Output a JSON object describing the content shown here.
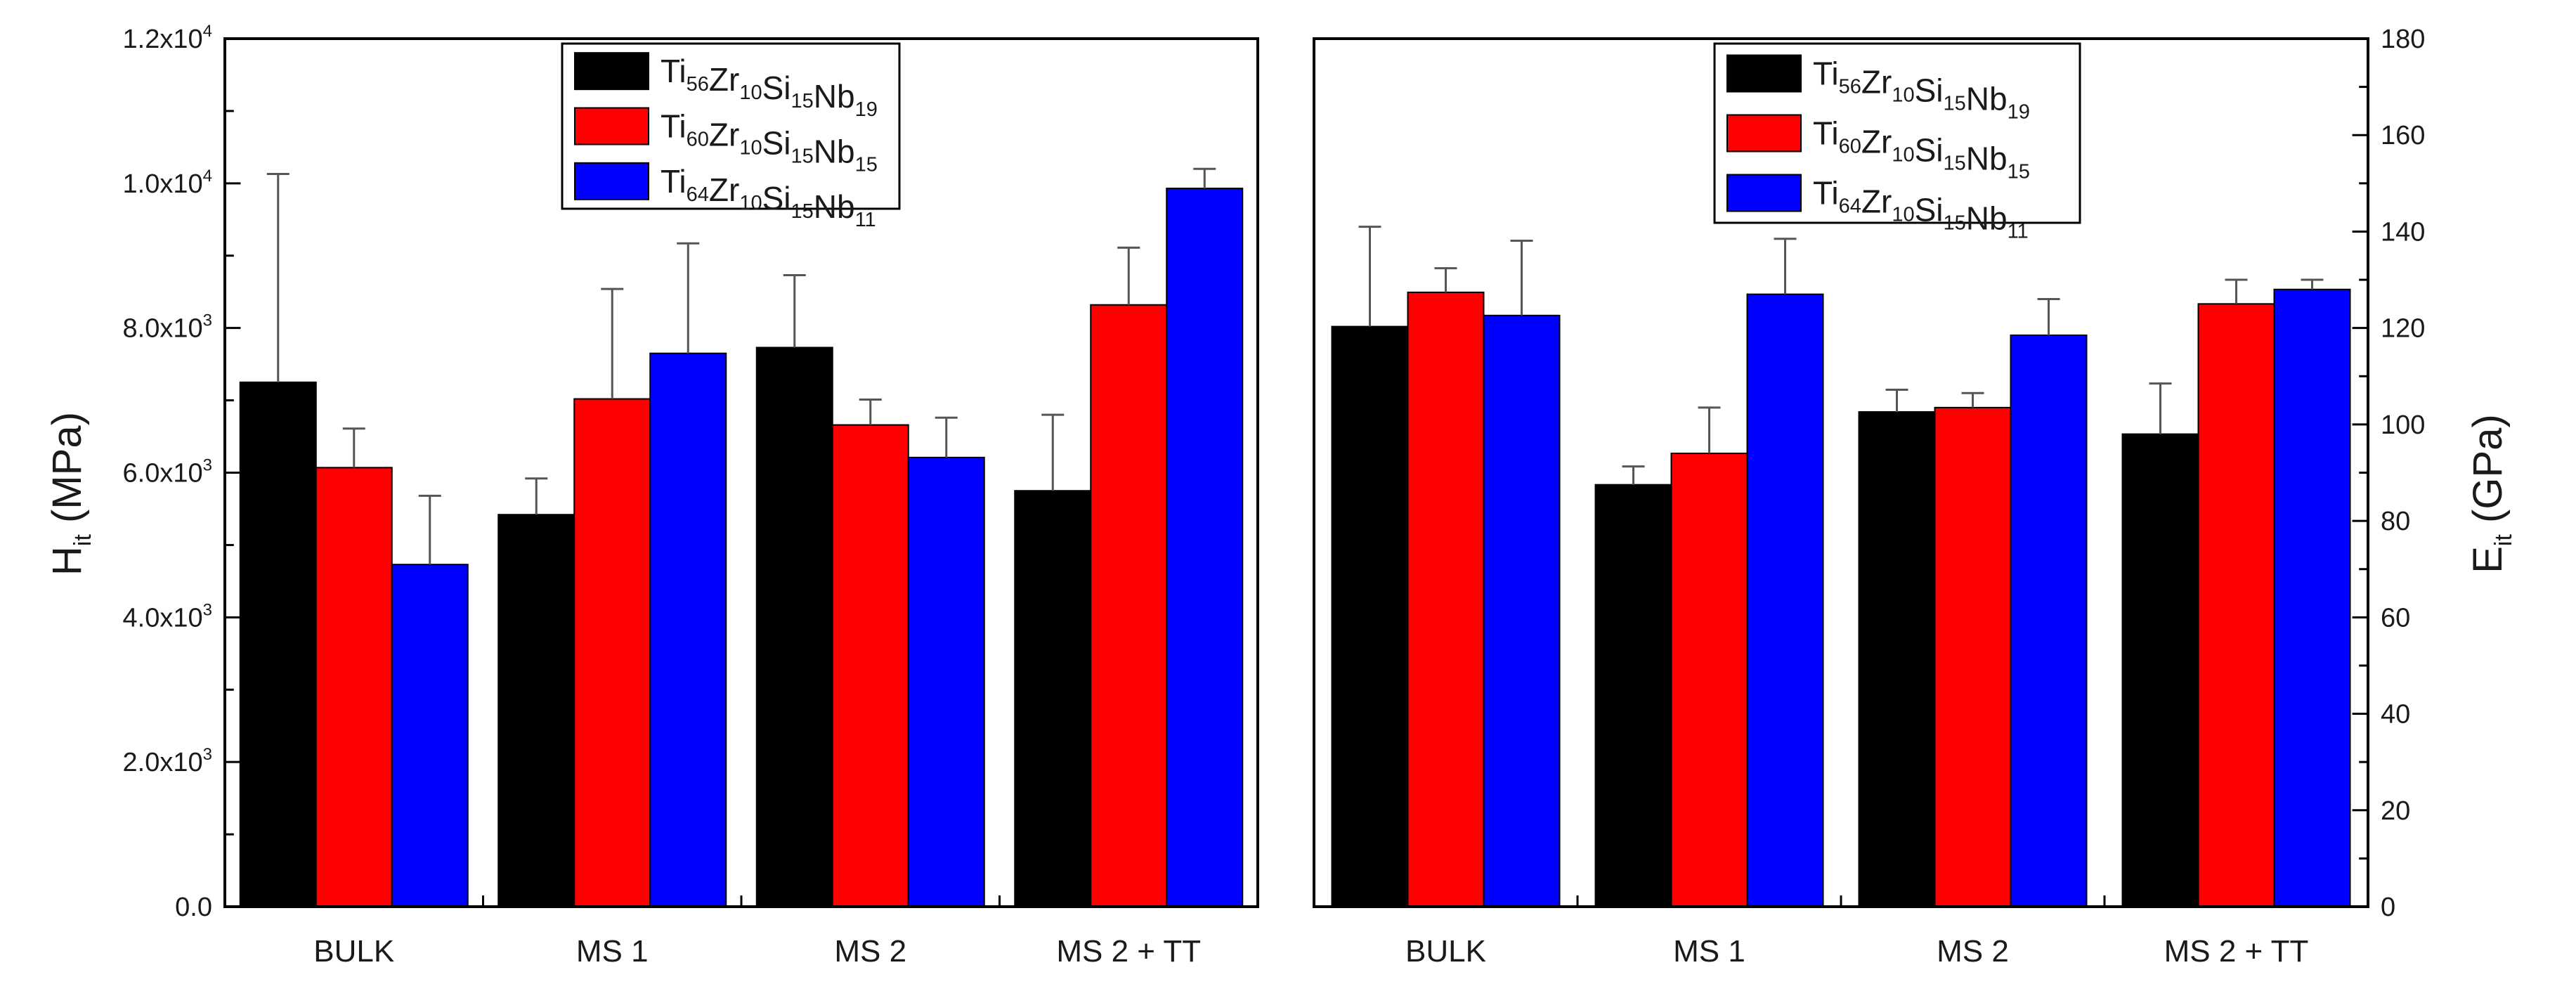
{
  "chart_data": [
    {
      "type": "bar",
      "categories": [
        "BULK",
        "MS 1",
        "MS 2",
        "MS 2 + TT"
      ],
      "ylabel": {
        "main": "H",
        "sub": "it",
        "unit": " (MPa)"
      },
      "ylim": [
        0,
        12000
      ],
      "yticks": [
        {
          "value": 0,
          "label": {
            "mantissa": "0.0",
            "exp": null
          }
        },
        {
          "value": 2000,
          "label": {
            "mantissa": "2.0x10",
            "exp": "3"
          }
        },
        {
          "value": 4000,
          "label": {
            "mantissa": "4.0x10",
            "exp": "3"
          }
        },
        {
          "value": 6000,
          "label": {
            "mantissa": "6.0x10",
            "exp": "3"
          }
        },
        {
          "value": 8000,
          "label": {
            "mantissa": "8.0x10",
            "exp": "3"
          }
        },
        {
          "value": 10000,
          "label": {
            "mantissa": "1.0x10",
            "exp": "4"
          }
        },
        {
          "value": 12000,
          "label": {
            "mantissa": "1.2x10",
            "exp": "4"
          }
        }
      ],
      "y_axis_side": "left",
      "legend_position": "top-center",
      "grid": false,
      "series": [
        {
          "name": [
            [
              "Ti",
              "56"
            ],
            [
              "Zr",
              "10"
            ],
            [
              "Si",
              "15"
            ],
            [
              "Nb",
              "19"
            ]
          ],
          "color": "#000000",
          "values": [
            7250,
            5420,
            7730,
            5750
          ],
          "errors": [
            2880,
            500,
            1000,
            1050
          ]
        },
        {
          "name": [
            [
              "Ti",
              "60"
            ],
            [
              "Zr",
              "10"
            ],
            [
              "Si",
              "15"
            ],
            [
              "Nb",
              "15"
            ]
          ],
          "color": "#ff0000",
          "values": [
            6070,
            7020,
            6660,
            8320
          ],
          "errors": [
            540,
            1520,
            350,
            790
          ]
        },
        {
          "name": [
            [
              "Ti",
              "64"
            ],
            [
              "Zr",
              "10"
            ],
            [
              "Si",
              "15"
            ],
            [
              "Nb",
              "11"
            ]
          ],
          "color": "#0000ff",
          "values": [
            4730,
            7650,
            6210,
            9930
          ],
          "errors": [
            950,
            1520,
            550,
            270
          ]
        }
      ]
    },
    {
      "type": "bar",
      "categories": [
        "BULK",
        "MS 1",
        "MS 2",
        "MS 2 + TT"
      ],
      "ylabel": {
        "main": "E",
        "sub": "it",
        "unit": " (GPa)"
      },
      "ylim": [
        0,
        180
      ],
      "yticks": [
        {
          "value": 0,
          "label": {
            "mantissa": "0",
            "exp": null
          }
        },
        {
          "value": 20,
          "label": {
            "mantissa": "20",
            "exp": null
          }
        },
        {
          "value": 40,
          "label": {
            "mantissa": "40",
            "exp": null
          }
        },
        {
          "value": 60,
          "label": {
            "mantissa": "60",
            "exp": null
          }
        },
        {
          "value": 80,
          "label": {
            "mantissa": "80",
            "exp": null
          }
        },
        {
          "value": 100,
          "label": {
            "mantissa": "100",
            "exp": null
          }
        },
        {
          "value": 120,
          "label": {
            "mantissa": "120",
            "exp": null
          }
        },
        {
          "value": 140,
          "label": {
            "mantissa": "140",
            "exp": null
          }
        },
        {
          "value": 160,
          "label": {
            "mantissa": "160",
            "exp": null
          }
        },
        {
          "value": 180,
          "label": {
            "mantissa": "180",
            "exp": null
          }
        }
      ],
      "y_axis_side": "right",
      "legend_position": "top-center",
      "grid": false,
      "series": [
        {
          "name": [
            [
              "Ti",
              "56"
            ],
            [
              "Zr",
              "10"
            ],
            [
              "Si",
              "15"
            ],
            [
              "Nb",
              "19"
            ]
          ],
          "color": "#000000",
          "values": [
            120.3,
            87.5,
            102.6,
            98.0
          ],
          "errors": [
            20.7,
            3.8,
            4.6,
            10.5
          ]
        },
        {
          "name": [
            [
              "Ti",
              "60"
            ],
            [
              "Zr",
              "10"
            ],
            [
              "Si",
              "15"
            ],
            [
              "Nb",
              "15"
            ]
          ],
          "color": "#ff0000",
          "values": [
            127.4,
            94.0,
            103.5,
            125.0
          ],
          "errors": [
            5.0,
            9.5,
            3.0,
            5.0
          ]
        },
        {
          "name": [
            [
              "Ti",
              "64"
            ],
            [
              "Zr",
              "10"
            ],
            [
              "Si",
              "15"
            ],
            [
              "Nb",
              "11"
            ]
          ],
          "color": "#0000ff",
          "values": [
            122.6,
            127.0,
            118.5,
            128.0
          ],
          "errors": [
            15.5,
            11.5,
            7.5,
            2.0
          ]
        }
      ]
    }
  ]
}
